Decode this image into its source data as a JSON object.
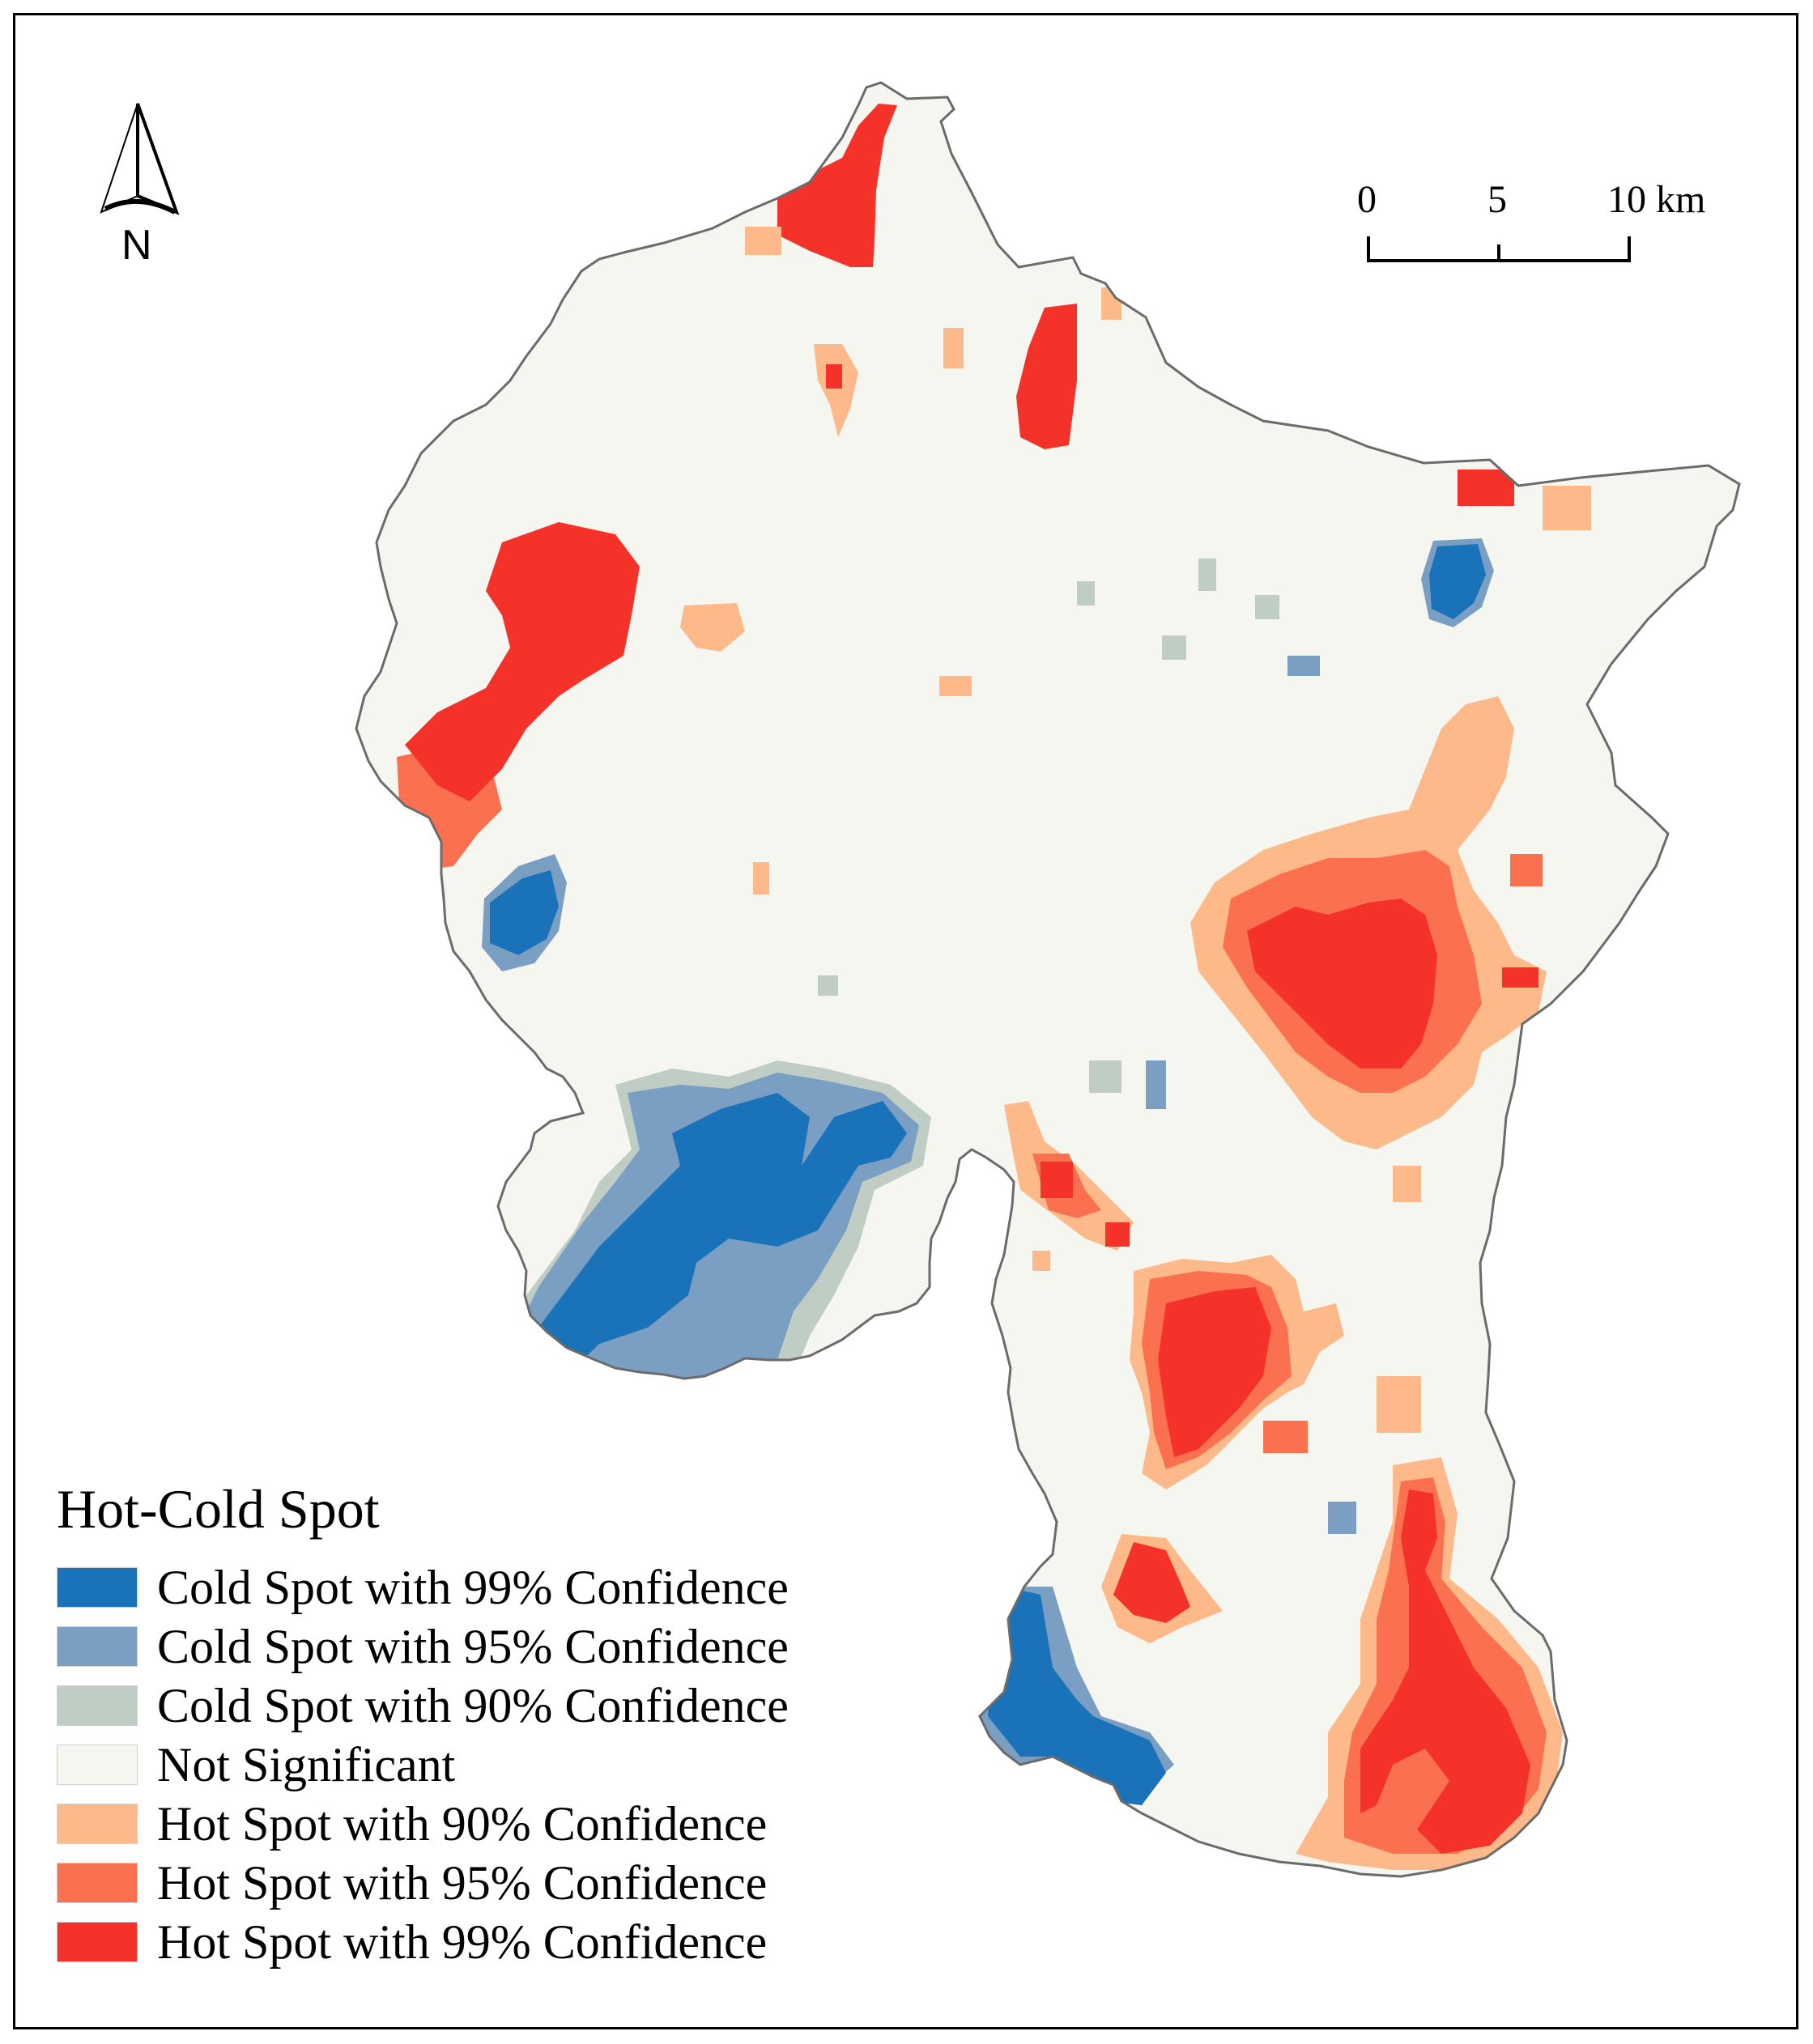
{
  "legend": {
    "title": "Hot-Cold Spot",
    "classes": [
      {
        "label": "Cold Spot with 99% Confidence",
        "color": "#1a73b8"
      },
      {
        "label": "Cold Spot with 95% Confidence",
        "color": "#7a9fc2"
      },
      {
        "label": "Cold Spot with 90% Confidence",
        "color": "#bfcdc4"
      },
      {
        "label": "Not Significant",
        "color": "#f5f6f0"
      },
      {
        "label": "Hot Spot with 90% Confidence",
        "color": "#fdb98a"
      },
      {
        "label": "Hot Spot with 95% Confidence",
        "color": "#fb7150"
      },
      {
        "label": "Hot Spot with 99% Confidence",
        "color": "#f4322a"
      }
    ]
  },
  "scale_bar": {
    "ticks": [
      "0",
      "5",
      "10 km"
    ]
  },
  "north_arrow": {
    "label": "N",
    "icon": "north-arrow-icon"
  },
  "boundary_color": "#6b6b6b"
}
